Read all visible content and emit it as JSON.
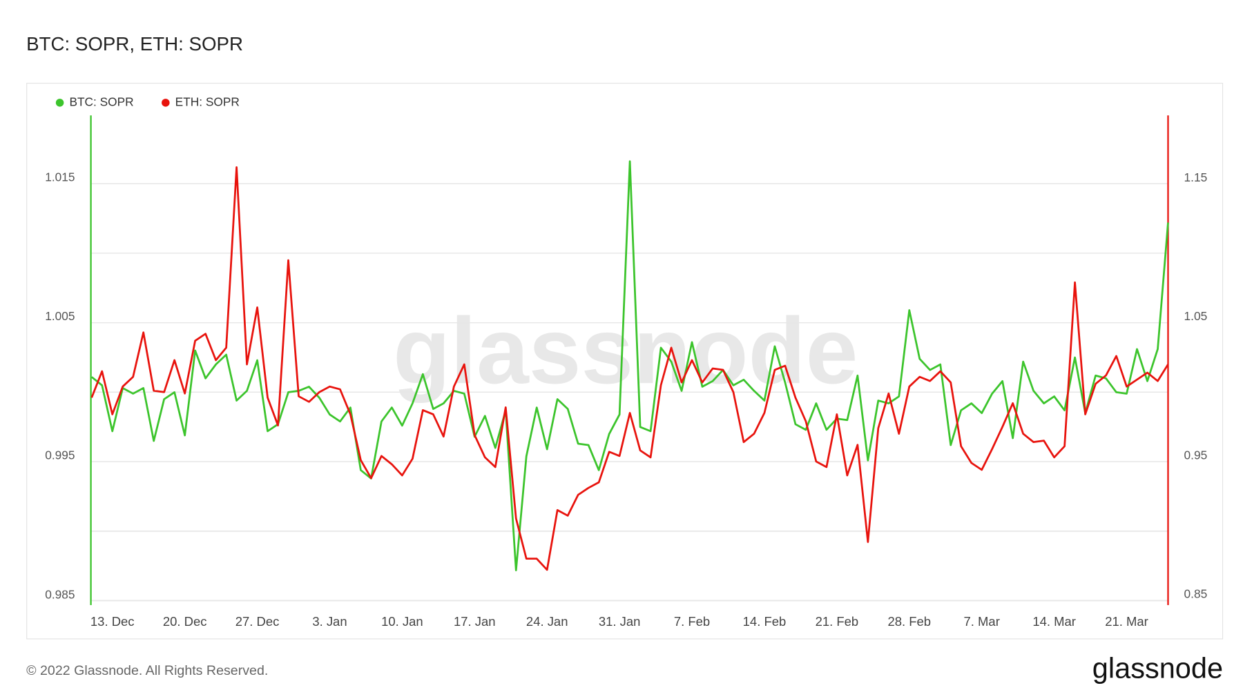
{
  "chart_data": {
    "type": "line",
    "title": "BTC: SOPR, ETH: SOPR",
    "watermark": "glassnode",
    "footer": "© 2022 Glassnode. All Rights Reserved.",
    "brand": "glassnode",
    "categories": [
      null,
      null,
      "13. Dec",
      null,
      null,
      null,
      null,
      null,
      null,
      "20. Dec",
      null,
      null,
      null,
      null,
      null,
      null,
      "27. Dec",
      null,
      null,
      null,
      null,
      null,
      null,
      "3. Jan",
      null,
      null,
      null,
      null,
      null,
      null,
      "10. Jan",
      null,
      null,
      null,
      null,
      null,
      null,
      "17. Jan",
      null,
      null,
      null,
      null,
      null,
      null,
      "24. Jan",
      null,
      null,
      null,
      null,
      null,
      null,
      "31. Jan",
      null,
      null,
      null,
      null,
      null,
      null,
      "7. Feb",
      null,
      null,
      null,
      null,
      null,
      null,
      "14. Feb",
      null,
      null,
      null,
      null,
      null,
      null,
      "21. Feb",
      null,
      null,
      null,
      null,
      null,
      null,
      "28. Feb",
      null,
      null,
      null,
      null,
      null,
      null,
      "7. Mar",
      null,
      null,
      null,
      null,
      null,
      null,
      "14. Mar",
      null,
      null,
      null,
      null,
      null,
      null,
      "21. Mar",
      null,
      null,
      null,
      null
    ],
    "series": [
      {
        "name": "BTC: SOPR",
        "color": "#3cc42c",
        "axis": "y",
        "values": [
          1.0011,
          1.0005,
          0.9972,
          1.0003,
          0.9999,
          1.0003,
          0.9965,
          0.9995,
          1.0,
          0.9969,
          1.003,
          1.001,
          1.002,
          1.0027,
          0.9994,
          1.0001,
          1.0023,
          0.9972,
          0.9977,
          1.0,
          1.0001,
          1.0004,
          0.9996,
          0.9984,
          0.9979,
          0.9989,
          0.9944,
          0.9938,
          0.9979,
          0.9989,
          0.9976,
          0.9992,
          1.0013,
          0.9988,
          0.9992,
          1.0001,
          0.9999,
          0.9968,
          0.9983,
          0.996,
          0.9987,
          0.9872,
          0.9954,
          0.9989,
          0.9959,
          0.9995,
          0.9988,
          0.9963,
          0.9962,
          0.9944,
          0.997,
          0.9984,
          1.0166,
          0.9975,
          0.9972,
          1.0032,
          1.0022,
          1.0001,
          1.0036,
          1.0004,
          1.0008,
          1.0016,
          1.0005,
          1.0009,
          1.0001,
          0.9994,
          1.0033,
          1.0007,
          0.9977,
          0.9973,
          0.9992,
          0.9973,
          0.9981,
          0.998,
          1.0012,
          0.9951,
          0.9994,
          0.9992,
          0.9997,
          1.0059,
          1.0024,
          1.0016,
          1.002,
          0.9962,
          0.9987,
          0.9992,
          0.9985,
          0.9999,
          1.0008,
          0.9967,
          1.0022,
          1.0001,
          0.9992,
          0.9997,
          0.9987,
          1.0025,
          0.9985,
          1.0012,
          1.001,
          1.0,
          0.9999,
          1.0031,
          1.0008,
          1.0031,
          1.0122
        ]
      },
      {
        "name": "ETH: SOPR",
        "color": "#e8130d",
        "axis": "y2",
        "values": [
          0.996,
          1.015,
          0.984,
          1.004,
          1.011,
          1.043,
          1.001,
          1.0,
          1.023,
          0.999,
          1.037,
          1.042,
          1.023,
          1.032,
          1.162,
          1.02,
          1.061,
          0.996,
          0.976,
          1.095,
          0.997,
          0.993,
          1.0,
          1.004,
          1.002,
          0.984,
          0.951,
          0.938,
          0.954,
          0.948,
          0.94,
          0.952,
          0.987,
          0.984,
          0.968,
          1.004,
          1.02,
          0.969,
          0.953,
          0.946,
          0.989,
          0.909,
          0.88,
          0.88,
          0.872,
          0.915,
          0.911,
          0.926,
          0.931,
          0.935,
          0.957,
          0.954,
          0.985,
          0.958,
          0.953,
          1.005,
          1.032,
          1.007,
          1.023,
          1.007,
          1.017,
          1.016,
          1.0,
          0.964,
          0.97,
          0.985,
          1.016,
          1.019,
          0.996,
          0.979,
          0.95,
          0.946,
          0.984,
          0.94,
          0.962,
          0.892,
          0.974,
          0.999,
          0.97,
          1.004,
          1.011,
          1.008,
          1.015,
          1.007,
          0.961,
          0.949,
          0.944,
          0.959,
          0.975,
          0.992,
          0.97,
          0.964,
          0.965,
          0.953,
          0.961,
          1.079,
          0.984,
          1.006,
          1.012,
          1.026,
          1.004,
          1.009,
          1.014,
          1.008,
          1.02
        ]
      }
    ],
    "ylim": [
      0.9847,
      1.0199
    ],
    "yticks": [
      0.985,
      0.995,
      1.005,
      1.015
    ],
    "minor_yticks": [
      0.99,
      1,
      1.01
    ],
    "y2lim": [
      0.8466,
      1.1993
    ],
    "y2ticks": [
      0.85,
      0.95,
      1.05,
      1.15
    ],
    "minor_y2ticks": [
      0.9,
      1,
      1.1
    ],
    "grid": true,
    "legend": "top-left"
  }
}
